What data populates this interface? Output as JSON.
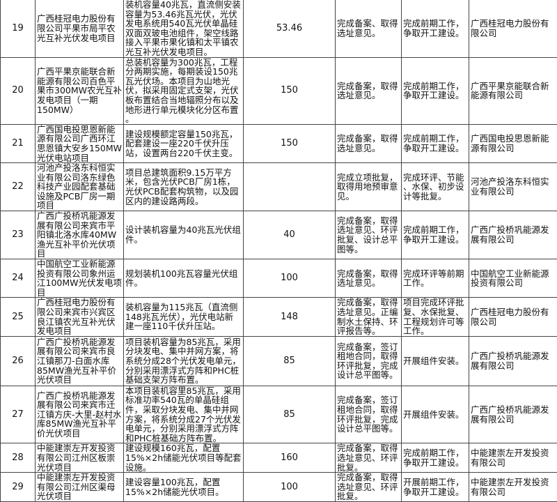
{
  "rows": [
    {
      "no": "19",
      "project": "广西桂冠电力股份有\n限公司平果市局平农\n光互补光伏发电项目",
      "content": "装机容量40兆瓦，直流侧安装\n容量为53.46兆瓦光伏，光伏\n发电系统用540瓦光伏单晶硅\n双面双玻电池组件，架空线路\n接入平果市果化镇和太平镇农\n光互补光伏发电项目。",
      "capacity": "53.46",
      "progress": "完成备案、取得\n选址意见。",
      "plan": "完成前期工作，\n争取开工建设。",
      "owner": "广西桂冠电力股份有\n限公司"
    },
    {
      "no": "20",
      "project": "广西平果京能联合新\n能源有限公司百色平\n果市300MW农光互补\n发电项目（一期\n150MW）",
      "content": "总装机容量为300兆瓦，工程\n分两期实施，每期装设150兆\n瓦光伏场。本项目为山地光\n伏，拟采用固定式支架，光伏\n板布置结合当地辐照分布以及\n地形进行单元模块化分区布置\n。",
      "capacity": "150",
      "progress": "完成备案，取得\n选址意见。",
      "plan": "完成前期工作，\n争取开工建设。",
      "owner": "广西平果京能联合新\n能源有限公司"
    },
    {
      "no": "21",
      "project": "广西国电投思恩新能\n源有限公司广西环江\n思恩镇大安乡150MW\n光伏电站项目",
      "content": "建设规模额定容量150兆瓦，\n配套建设一座220千伏升压\n站，设置两台220千伏主变。",
      "capacity": "150",
      "progress": "完成备案，取得\n选址意见。",
      "plan": "完成前期工作，\n争取开工建设。",
      "owner": "广西国电投思恩新能\n源有限公司"
    },
    {
      "no": "22",
      "project": "河池产投洛东科恒实\n业有限公司洛东绿色\n科技产业园配套基础\n设施及PCB厂房一期\n项目",
      "content": "项目总建筑面积9.15万平方\n米，包含光伏PCB厂房1栋，\n光伏PCB配套构筑物，以及园\n区内的建设路两段。",
      "capacity": "",
      "progress": "完成立项批复，\n取得用地预审意\n见。",
      "plan": "完成环评、节能\n、水保、初步设\n计等批复。",
      "owner": "河池产投洛东科恒实\n业有限公司"
    },
    {
      "no": "23",
      "project": "广西广投桥巩能源发\n展有限公司来宾市平\n阳镇北洛水库40MW\n渔光互补平价光伏项\n目",
      "content": "设计装机容量为40兆瓦光伏组\n件。",
      "capacity": "40",
      "progress": "完成备案，取得\n选址意见、环评\n批复、设计总平\n图等。",
      "plan": "完成前期工作，\n争取开工建设。",
      "owner": "广西广投桥巩能源发\n展有限公司"
    },
    {
      "no": "24",
      "project": "中国航空工业新能源\n投资有限公司象州运\n江100MW光伏发电项\n目",
      "content": "规划装机100兆瓦容量光伏组\n件。",
      "capacity": "100",
      "progress": "完成备案，取得\n选址意见。",
      "plan": "完成环评等前期\n工作。",
      "owner": "中国航空工业新能源\n投资有限公司"
    },
    {
      "no": "25",
      "project": "广西桂冠电力股份有\n限公司来宾市兴宾区\n良江镇农光互补光伏\n发电项目",
      "content": "装机容量为115兆瓦（直流侧\n148兆瓦光伏），光伏电站新\n建一座110千伏升压站。",
      "capacity": "148",
      "progress": "完成备案，取得\n选址意见。正编\n制水土保持、环\n评报告等。",
      "plan": "项目完成环评批\n复、水保批复、\n工程规划许可等\n工作。",
      "owner": "广西桂冠电力股份有\n限公司"
    },
    {
      "no": "26",
      "project": "广西广投桥巩能源发\n展有限公司来宾市良\n江镇那刀-白面水库\n85MW渔光互补平价\n光伏项目",
      "content": "项目装机容量为85兆瓦，采用\n分块发电、集中并网方案，将\n系统分成28个光伏发电单元，\n分别采用漂浮式方阵和PHC桩\n基础支架方阵布置。",
      "capacity": "85",
      "progress": "完成备案，签订\n租地合同，取得\n环评批复，完成\n设计总平图等。",
      "plan": "开展组件安装。",
      "owner": "广西广投桥巩能源发\n展有限公司"
    },
    {
      "no": "27",
      "project": "广西广投桥巩能源发\n展有限公司来宾市迁\n江镇方庆-大里-赵村水\n库85MW渔光互补平\n价光伏项目",
      "content": "本项目装机容里85兆瓦，采用\n标准功率540瓦的单晶硅组\n件，采取分块发电、集中并网\n方案，将系统分成27个光伏发\n电单元，分别采用漂浮式方阵\n和PHC桩基础方阵布置。",
      "capacity": "85",
      "progress": "完成备案，签订\n租地合同，取得\n环评批复，完成\n设计总平图等。",
      "plan": "开展组件安装。",
      "owner": "广西广投桥巩能源发\n展有限公司"
    },
    {
      "no": "28",
      "project": "中能建崇左开发投资\n有限公司江州区板崇\n光伏项目",
      "content": "建设规模160兆瓦，配置\n15%×2h储能光伏项目等配套\n设施。",
      "capacity": "160",
      "progress": "完成备案，取得\n选址意见、环评\n批复。",
      "plan": "完成前期工作，\n争取开工建设。",
      "owner": "中能建崇左开发投资\n有限公司"
    },
    {
      "no": "29",
      "project": "中能建崇左开发投资\n有限公司江州区渠母\n光伏项目",
      "content": "建设容量100兆瓦，配置\n15%×2h储能光伏项目。",
      "capacity": "100",
      "progress": "完成备案，取得\n选址意见、环评\n批复。",
      "plan": "开展前期工作，\n争取开工建设。",
      "owner": "中能建崇左开发投资\n有限公司"
    }
  ]
}
